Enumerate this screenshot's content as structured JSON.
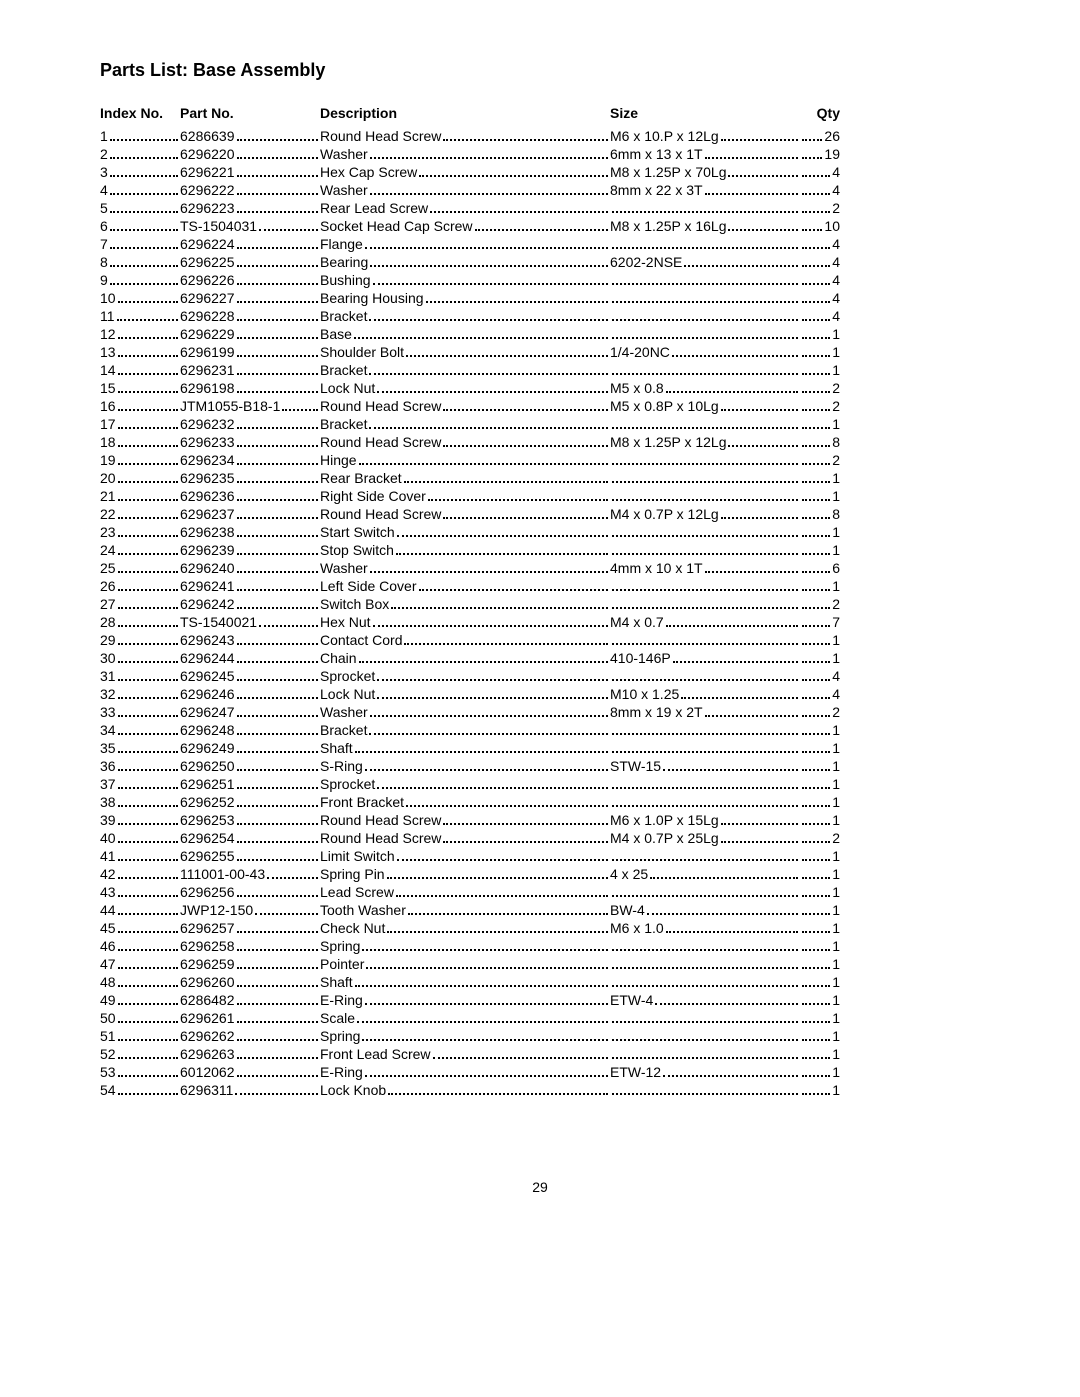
{
  "title": "Parts List: Base Assembly",
  "headers": {
    "index": "Index No.",
    "part": "Part No.",
    "description": "Description",
    "size": "Size",
    "qty": "Qty"
  },
  "page_number": "29",
  "rows": [
    {
      "index": "1",
      "part": "6286639",
      "desc": "Round Head Screw",
      "size": "M6 x 10.P x 12Lg",
      "qty": "26"
    },
    {
      "index": "2",
      "part": "6296220",
      "desc": "Washer",
      "size": "6mm x 13 x 1T",
      "qty": "19"
    },
    {
      "index": "3",
      "part": "6296221",
      "desc": "Hex Cap Screw",
      "size": "M8 x 1.25P x 70Lg",
      "qty": "4"
    },
    {
      "index": "4",
      "part": "6296222",
      "desc": "Washer",
      "size": "8mm x 22 x 3T",
      "qty": "4"
    },
    {
      "index": "5",
      "part": "6296223",
      "desc": "Rear Lead Screw",
      "size": "",
      "qty": "2"
    },
    {
      "index": "6",
      "part": "TS-1504031",
      "desc": "Socket Head Cap Screw",
      "size": "M8 x 1.25P x 16Lg",
      "qty": "10"
    },
    {
      "index": "7",
      "part": "6296224",
      "desc": "Flange",
      "size": "",
      "qty": "4"
    },
    {
      "index": "8",
      "part": "6296225",
      "desc": "Bearing",
      "size": "6202-2NSE",
      "qty": "4"
    },
    {
      "index": "9",
      "part": "6296226",
      "desc": "Bushing",
      "size": "",
      "qty": "4"
    },
    {
      "index": "10",
      "part": "6296227",
      "desc": "Bearing Housing",
      "size": "",
      "qty": "4"
    },
    {
      "index": "11",
      "part": "6296228",
      "desc": "Bracket",
      "size": "",
      "qty": "4"
    },
    {
      "index": "12",
      "part": "6296229",
      "desc": "Base",
      "size": "",
      "qty": "1"
    },
    {
      "index": "13",
      "part": "6296199",
      "desc": "Shoulder Bolt",
      "size": "1/4-20NC",
      "qty": "1"
    },
    {
      "index": "14",
      "part": "6296231",
      "desc": "Bracket",
      "size": "",
      "qty": "1"
    },
    {
      "index": "15",
      "part": "6296198",
      "desc": "Lock Nut",
      "size": "M5 x 0.8",
      "qty": "2"
    },
    {
      "index": "16",
      "part": "JTM1055-B18-1",
      "desc": "Round Head Screw",
      "size": "M5 x 0.8P x 10Lg",
      "qty": "2"
    },
    {
      "index": "17",
      "part": "6296232",
      "desc": "Bracket",
      "size": "",
      "qty": "1"
    },
    {
      "index": "18",
      "part": "6296233",
      "desc": "Round Head Screw",
      "size": "M8 x 1.25P x 12Lg",
      "qty": "8"
    },
    {
      "index": "19",
      "part": "6296234",
      "desc": "Hinge",
      "size": "",
      "qty": "2"
    },
    {
      "index": "20",
      "part": "6296235",
      "desc": "Rear Bracket",
      "size": "",
      "qty": "1"
    },
    {
      "index": "21",
      "part": "6296236",
      "desc": "Right Side Cover",
      "size": "",
      "qty": "1"
    },
    {
      "index": "22",
      "part": "6296237",
      "desc": "Round Head Screw",
      "size": "M4 x 0.7P x 12Lg",
      "qty": "8"
    },
    {
      "index": "23",
      "part": "6296238",
      "desc": "Start Switch",
      "size": "",
      "qty": "1"
    },
    {
      "index": "24",
      "part": "6296239",
      "desc": "Stop Switch",
      "size": "",
      "qty": "1"
    },
    {
      "index": "25",
      "part": "6296240",
      "desc": "Washer",
      "size": "4mm x 10 x 1T",
      "qty": "6"
    },
    {
      "index": "26",
      "part": "6296241",
      "desc": "Left Side Cover",
      "size": "",
      "qty": "1"
    },
    {
      "index": "27",
      "part": "6296242",
      "desc": "Switch Box",
      "size": "",
      "qty": "2"
    },
    {
      "index": "28",
      "part": "TS-1540021",
      "desc": "Hex Nut",
      "size": "M4 x 0.7",
      "qty": "7"
    },
    {
      "index": "29",
      "part": "6296243",
      "desc": "Contact Cord",
      "size": "",
      "qty": "1"
    },
    {
      "index": "30",
      "part": "6296244",
      "desc": "Chain",
      "size": "410-146P",
      "qty": "1"
    },
    {
      "index": "31",
      "part": "6296245",
      "desc": "Sprocket",
      "size": "",
      "qty": "4"
    },
    {
      "index": "32",
      "part": "6296246",
      "desc": "Lock Nut",
      "size": "M10 x 1.25",
      "qty": "4"
    },
    {
      "index": "33",
      "part": "6296247",
      "desc": "Washer",
      "size": "8mm x 19 x 2T",
      "qty": "2"
    },
    {
      "index": "34",
      "part": "6296248",
      "desc": "Bracket",
      "size": "",
      "qty": "1"
    },
    {
      "index": "35",
      "part": "6296249",
      "desc": "Shaft",
      "size": "",
      "qty": "1"
    },
    {
      "index": "36",
      "part": "6296250",
      "desc": "S-Ring",
      "size": "STW-15",
      "qty": "1"
    },
    {
      "index": "37",
      "part": "6296251",
      "desc": "Sprocket",
      "size": "",
      "qty": "1"
    },
    {
      "index": "38",
      "part": "6296252",
      "desc": "Front Bracket",
      "size": "",
      "qty": "1"
    },
    {
      "index": "39",
      "part": "6296253",
      "desc": "Round Head Screw",
      "size": "M6 x 1.0P x 15Lg",
      "qty": "1"
    },
    {
      "index": "40",
      "part": "6296254",
      "desc": "Round Head Screw",
      "size": "M4 x 0.7P x 25Lg",
      "qty": "2"
    },
    {
      "index": "41",
      "part": "6296255",
      "desc": "Limit Switch",
      "size": "",
      "qty": "1"
    },
    {
      "index": "42",
      "part": "111001-00-43",
      "desc": "Spring Pin",
      "size": "4 x 25",
      "qty": "1"
    },
    {
      "index": "43",
      "part": "6296256",
      "desc": "Lead Screw",
      "size": "",
      "qty": "1"
    },
    {
      "index": "44",
      "part": "JWP12-150",
      "desc": "Tooth Washer",
      "size": "BW-4",
      "qty": "1"
    },
    {
      "index": "45",
      "part": "6296257",
      "desc": "Check Nut",
      "size": "M6 x 1.0",
      "qty": "1"
    },
    {
      "index": "46",
      "part": "6296258",
      "desc": "Spring",
      "size": "",
      "qty": "1"
    },
    {
      "index": "47",
      "part": "6296259",
      "desc": "Pointer",
      "size": "",
      "qty": "1"
    },
    {
      "index": "48",
      "part": "6296260",
      "desc": "Shaft",
      "size": "",
      "qty": "1"
    },
    {
      "index": "49",
      "part": "6286482",
      "desc": "E-Ring",
      "size": "ETW-4",
      "qty": "1"
    },
    {
      "index": "50",
      "part": "6296261",
      "desc": "Scale",
      "size": "",
      "qty": "1"
    },
    {
      "index": "51",
      "part": "6296262",
      "desc": "Spring",
      "size": "",
      "qty": "1"
    },
    {
      "index": "52",
      "part": "6296263",
      "desc": "Front Lead Screw",
      "size": "",
      "qty": "1"
    },
    {
      "index": "53",
      "part": "6012062",
      "desc": "E-Ring",
      "size": "ETW-12",
      "qty": "1"
    },
    {
      "index": "54",
      "part": "6296311",
      "desc": "Lock Knob",
      "size": "",
      "qty": "1"
    }
  ]
}
